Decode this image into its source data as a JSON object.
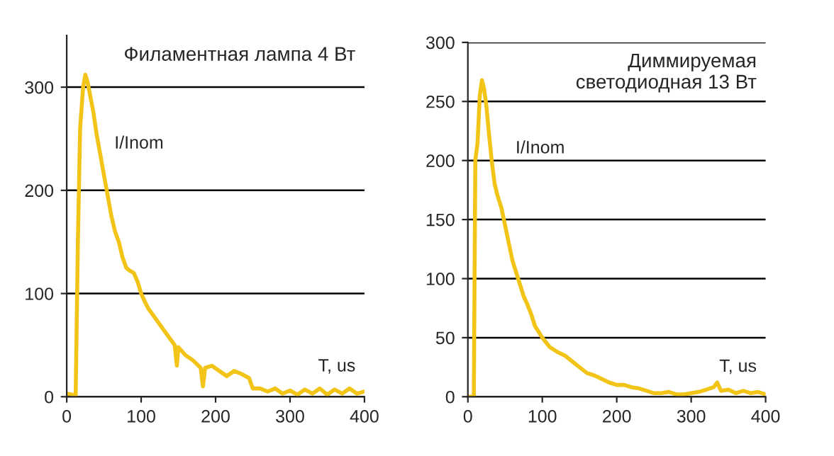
{
  "chart_data": [
    {
      "type": "line",
      "title": "Филаментная лампа 4 Вт",
      "xlabel": "T, us",
      "ylabel": "I/Inom",
      "xlim": [
        0,
        400
      ],
      "ylim": [
        0,
        350
      ],
      "xticks": [
        0,
        100,
        200,
        300,
        400
      ],
      "yticks": [
        0,
        100,
        200,
        300
      ],
      "grid": "y",
      "legend": false,
      "x": [
        0,
        8,
        12,
        15,
        18,
        22,
        25,
        28,
        32,
        36,
        40,
        45,
        50,
        55,
        60,
        65,
        70,
        75,
        80,
        85,
        90,
        95,
        100,
        105,
        110,
        120,
        130,
        140,
        145,
        148,
        150,
        160,
        170,
        180,
        183,
        186,
        195,
        205,
        215,
        225,
        235,
        245,
        250,
        260,
        270,
        280,
        290,
        300,
        310,
        320,
        330,
        340,
        350,
        360,
        370,
        380,
        390,
        400
      ],
      "series": [
        {
          "color": "#f2c417",
          "values": [
            3,
            2,
            0,
            150,
            260,
            300,
            312,
            305,
            290,
            275,
            255,
            235,
            215,
            195,
            175,
            160,
            150,
            135,
            125,
            122,
            120,
            112,
            100,
            92,
            85,
            75,
            65,
            55,
            50,
            30,
            48,
            40,
            35,
            28,
            10,
            28,
            30,
            25,
            20,
            25,
            22,
            18,
            8,
            8,
            5,
            8,
            3,
            6,
            2,
            7,
            3,
            8,
            2,
            7,
            3,
            8,
            3,
            5
          ]
        }
      ]
    },
    {
      "type": "line",
      "title": "Диммируемая\nсветодиодная 13 Вт",
      "xlabel": "T, us",
      "ylabel": "I/Inom",
      "xlim": [
        0,
        400
      ],
      "ylim": [
        0,
        300
      ],
      "xticks": [
        0,
        100,
        200,
        300,
        400
      ],
      "yticks": [
        0,
        50,
        100,
        150,
        200,
        250,
        300
      ],
      "grid": "y",
      "legend": false,
      "x": [
        0,
        8,
        10,
        13,
        16,
        19,
        22,
        25,
        28,
        32,
        36,
        40,
        45,
        50,
        55,
        60,
        65,
        70,
        75,
        80,
        85,
        90,
        95,
        100,
        110,
        120,
        130,
        140,
        150,
        160,
        170,
        180,
        190,
        200,
        210,
        220,
        230,
        240,
        250,
        260,
        270,
        280,
        290,
        300,
        310,
        320,
        330,
        335,
        340,
        350,
        360,
        370,
        380,
        390,
        400
      ],
      "series": [
        {
          "color": "#f2c417",
          "values": [
            0,
            0,
            200,
            215,
            255,
            268,
            260,
            245,
            225,
            200,
            180,
            170,
            160,
            145,
            130,
            115,
            105,
            95,
            85,
            78,
            70,
            60,
            55,
            50,
            42,
            38,
            35,
            30,
            25,
            20,
            18,
            15,
            12,
            10,
            10,
            8,
            7,
            5,
            3,
            3,
            4,
            2,
            2,
            3,
            4,
            6,
            8,
            12,
            5,
            6,
            3,
            5,
            3,
            4,
            2
          ]
        }
      ]
    }
  ]
}
